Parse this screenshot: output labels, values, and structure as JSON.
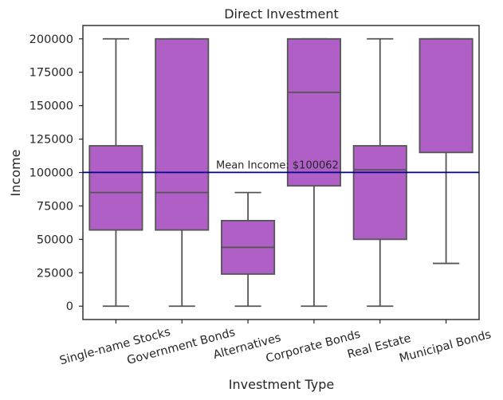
{
  "chart_data": {
    "type": "box",
    "title": "Direct Investment",
    "xlabel": "Investment Type",
    "ylabel": "Income",
    "ylim": [
      -10000,
      210000
    ],
    "yticks": [
      0,
      25000,
      50000,
      75000,
      100000,
      125000,
      150000,
      175000,
      200000
    ],
    "ytick_labels": [
      "0",
      "25000",
      "50000",
      "75000",
      "100000",
      "125000",
      "150000",
      "175000",
      "200000"
    ],
    "categories": [
      "Single-name Stocks",
      "Government Bonds",
      "Alternatives",
      "Corporate Bonds",
      "Real Estate",
      "Municipal Bonds"
    ],
    "boxes": [
      {
        "category": "Single-name Stocks",
        "min": 0,
        "q1": 57000,
        "median": 85000,
        "q3": 120000,
        "max": 200000
      },
      {
        "category": "Government Bonds",
        "min": 0,
        "q1": 57000,
        "median": 85000,
        "q3": 200000,
        "max": 200000
      },
      {
        "category": "Alternatives",
        "min": 0,
        "q1": 24000,
        "median": 44000,
        "q3": 64000,
        "max": 85000
      },
      {
        "category": "Corporate Bonds",
        "min": 0,
        "q1": 90000,
        "median": 160000,
        "q3": 200000,
        "max": 200000
      },
      {
        "category": "Real Estate",
        "min": 0,
        "q1": 50000,
        "median": 102000,
        "q3": 120000,
        "max": 200000
      },
      {
        "category": "Municipal Bonds",
        "min": 32000,
        "q1": 115000,
        "median": 200000,
        "q3": 200000,
        "max": 200000
      }
    ],
    "mean_line": {
      "value": 100062,
      "label": "Mean Income: $100062",
      "color": "#00008b"
    },
    "box_color": "#b05fc7",
    "line_color": "#555555",
    "grid": false
  }
}
